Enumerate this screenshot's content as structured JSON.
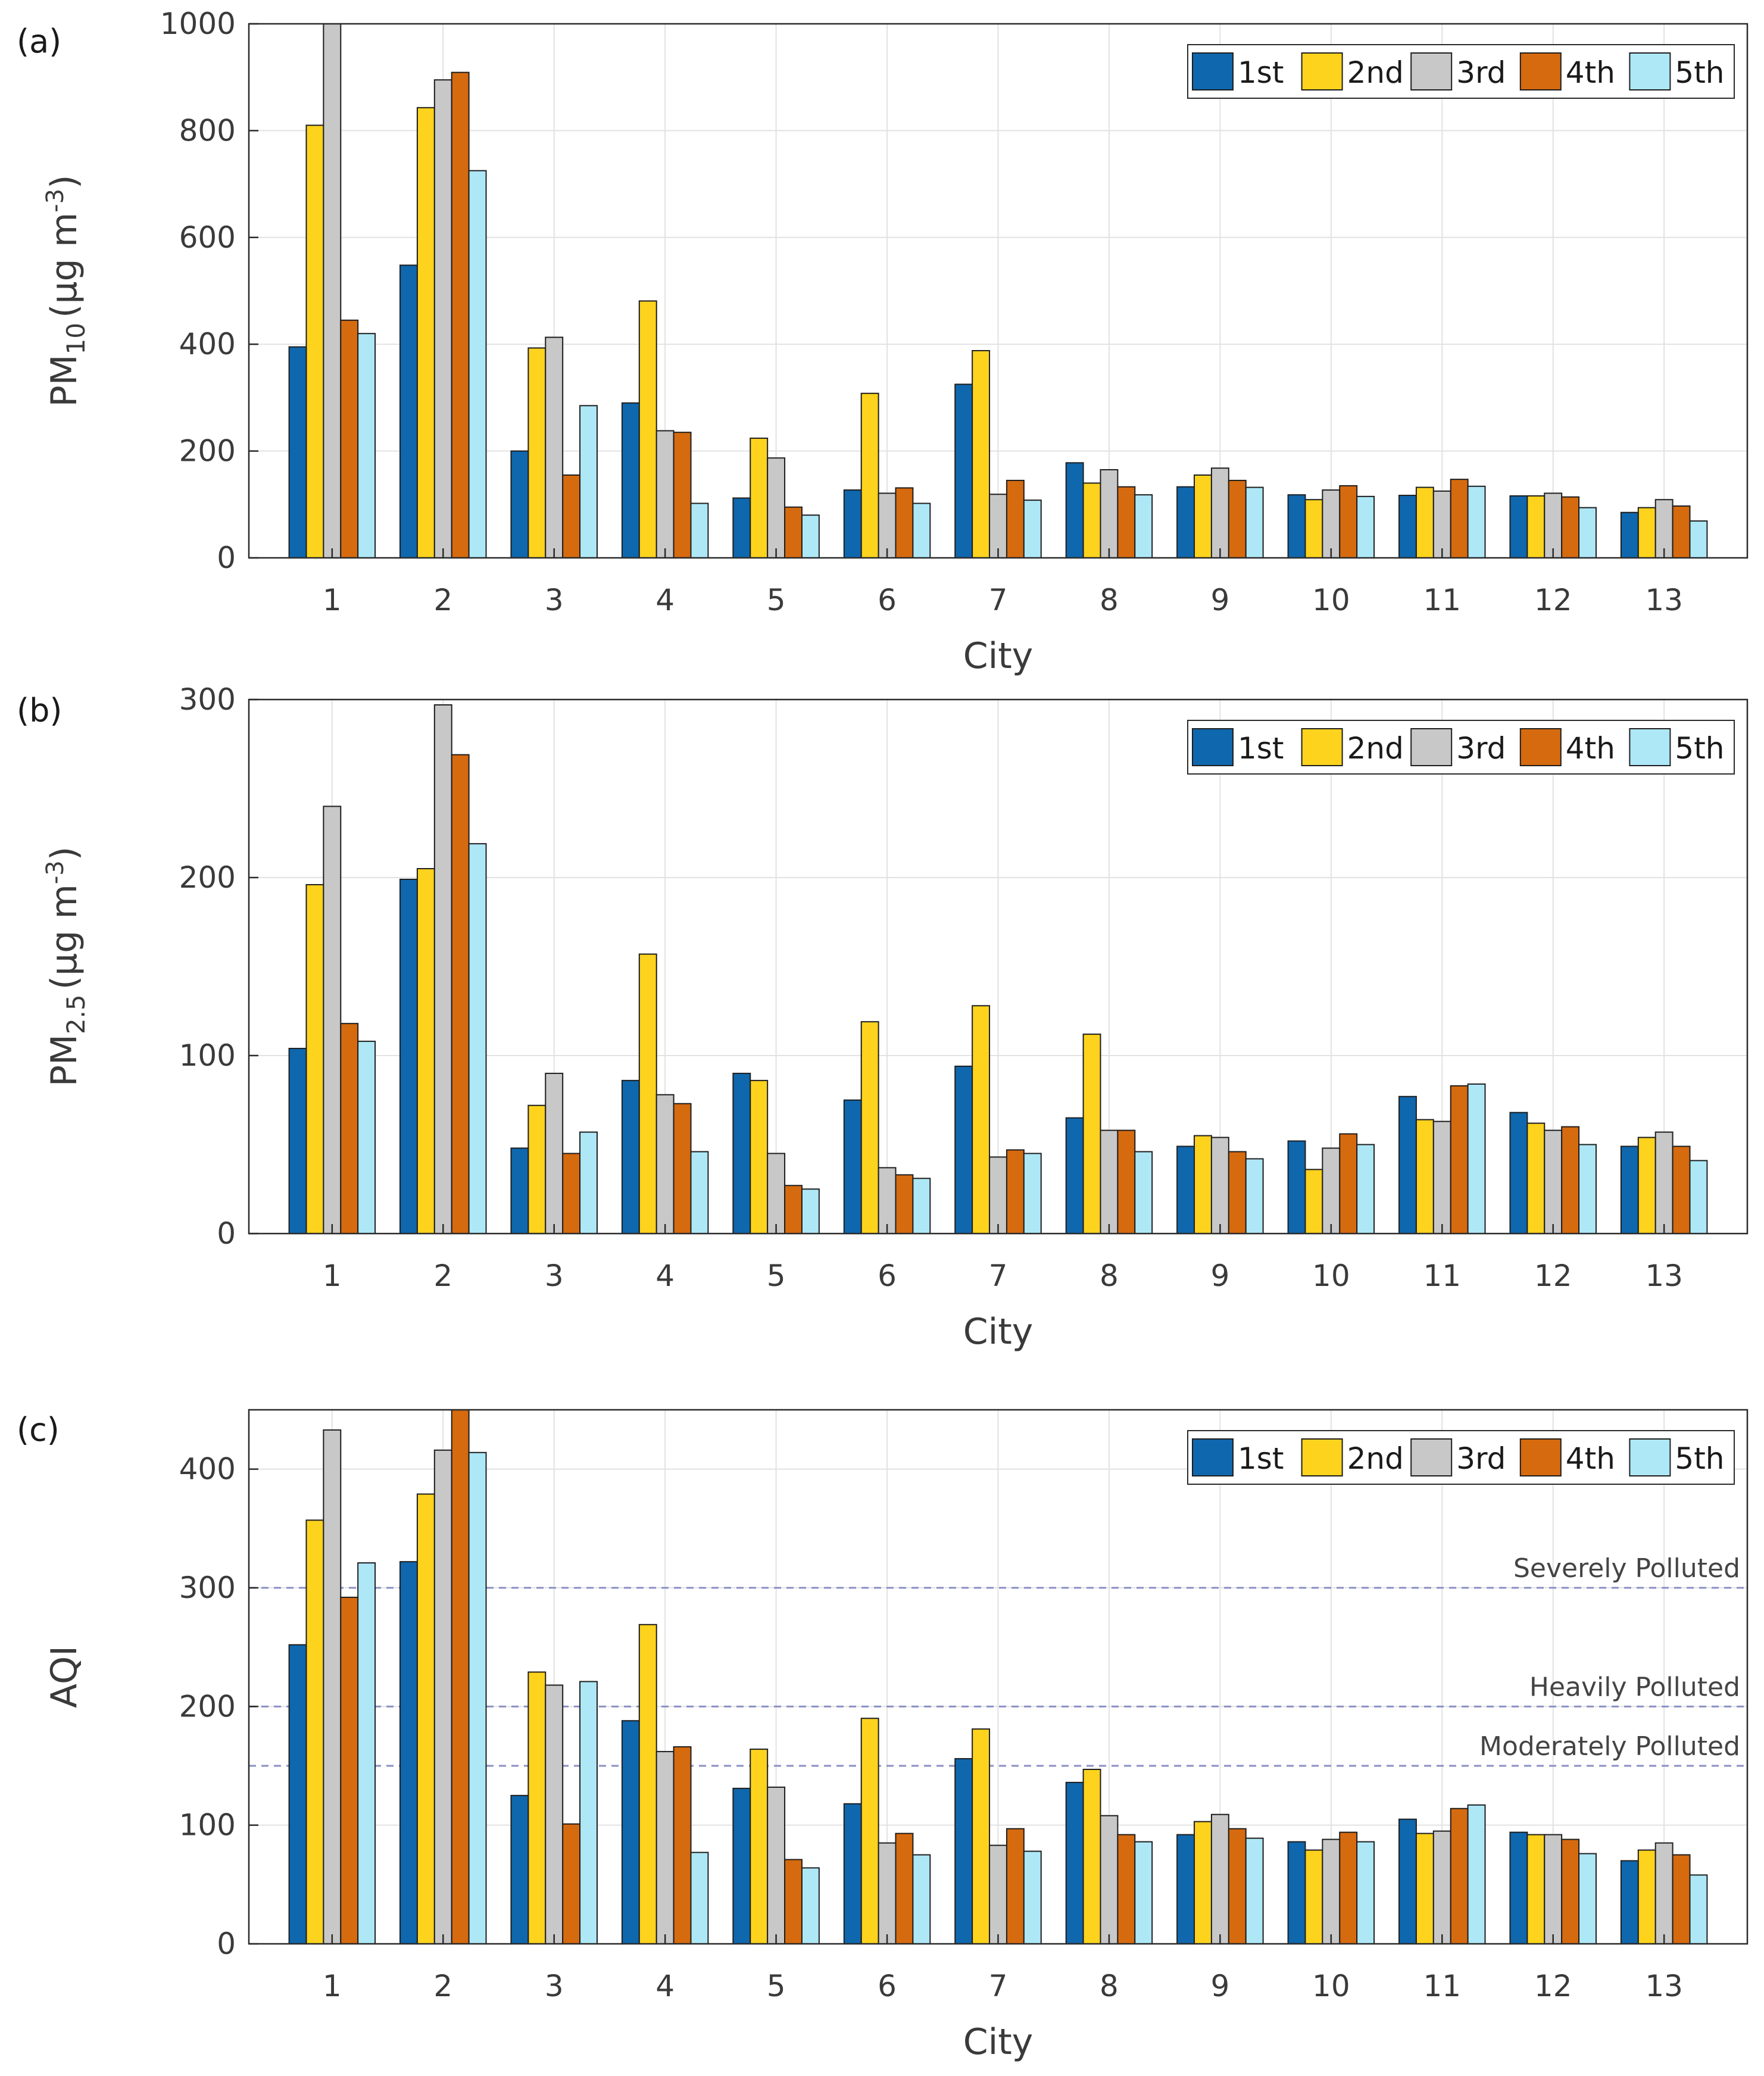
{
  "series_names": [
    "1st",
    "2nd",
    "3rd",
    "4th",
    "5th"
  ],
  "series_colors": [
    "#0f67ad",
    "#fdd31e",
    "#c8c8c8",
    "#d66a0f",
    "#aee8f7"
  ],
  "chart_data": [
    {
      "type": "bar",
      "panel_label": "(a)",
      "ylabel_main": "PM",
      "ylabel_sub": "10",
      "ylabel_unit_open": "(μg m",
      "ylabel_unit_sup": "-3",
      "ylabel_unit_close": ")",
      "xlabel": "City",
      "categories": [
        "1",
        "2",
        "3",
        "4",
        "5",
        "6",
        "7",
        "8",
        "9",
        "10",
        "11",
        "12",
        "13"
      ],
      "ylim": [
        0,
        1000
      ],
      "yticks": [
        0,
        200,
        400,
        600,
        800,
        1000
      ],
      "ytick_labels": [
        "0",
        "200",
        "400",
        "600",
        "800",
        "1000"
      ],
      "grid": true,
      "legend": "top-right",
      "series": [
        {
          "name": "1st",
          "values": [
            395,
            548,
            200,
            290,
            112,
            127,
            325,
            178,
            133,
            118,
            117,
            116,
            85
          ]
        },
        {
          "name": "2nd",
          "values": [
            810,
            843,
            393,
            481,
            224,
            308,
            388,
            140,
            155,
            109,
            132,
            116,
            94
          ]
        },
        {
          "name": "3rd",
          "values": [
            1000,
            895,
            413,
            238,
            187,
            121,
            119,
            165,
            168,
            127,
            125,
            121,
            109
          ]
        },
        {
          "name": "4th",
          "values": [
            445,
            909,
            155,
            235,
            95,
            131,
            145,
            133,
            145,
            135,
            147,
            114,
            97
          ]
        },
        {
          "name": "5th",
          "values": [
            420,
            725,
            285,
            102,
            80,
            102,
            108,
            118,
            132,
            115,
            134,
            94,
            69
          ]
        }
      ]
    },
    {
      "type": "bar",
      "panel_label": "(b)",
      "ylabel_main": "PM",
      "ylabel_sub": "2.5",
      "ylabel_unit_open": "(μg m",
      "ylabel_unit_sup": "-3",
      "ylabel_unit_close": ")",
      "xlabel": "City",
      "categories": [
        "1",
        "2",
        "3",
        "4",
        "5",
        "6",
        "7",
        "8",
        "9",
        "10",
        "11",
        "12",
        "13"
      ],
      "ylim": [
        0,
        300
      ],
      "yticks": [
        0,
        100,
        200,
        300
      ],
      "ytick_labels": [
        "0",
        "100",
        "200",
        "300"
      ],
      "grid": true,
      "legend": "top-right",
      "series": [
        {
          "name": "1st",
          "values": [
            104,
            199,
            48,
            86,
            90,
            75,
            94,
            65,
            49,
            52,
            77,
            68,
            49
          ]
        },
        {
          "name": "2nd",
          "values": [
            196,
            205,
            72,
            157,
            86,
            119,
            128,
            112,
            55,
            36,
            64,
            62,
            54
          ]
        },
        {
          "name": "3rd",
          "values": [
            240,
            297,
            90,
            78,
            45,
            37,
            43,
            58,
            54,
            48,
            63,
            58,
            57
          ]
        },
        {
          "name": "4th",
          "values": [
            118,
            269,
            45,
            73,
            27,
            33,
            47,
            58,
            46,
            56,
            83,
            60,
            49
          ]
        },
        {
          "name": "5th",
          "values": [
            108,
            219,
            57,
            46,
            25,
            31,
            45,
            46,
            42,
            50,
            84,
            50,
            41
          ]
        }
      ]
    },
    {
      "type": "bar",
      "panel_label": "(c)",
      "ylabel_main": "AQI",
      "xlabel": "City",
      "categories": [
        "1",
        "2",
        "3",
        "4",
        "5",
        "6",
        "7",
        "8",
        "9",
        "10",
        "11",
        "12",
        "13"
      ],
      "ylim": [
        0,
        450
      ],
      "yticks": [
        0,
        100,
        200,
        300,
        400
      ],
      "ytick_labels": [
        "0",
        "100",
        "200",
        "300",
        "400"
      ],
      "grid": true,
      "legend": "top-right",
      "thresholds": [
        {
          "value": 300,
          "label": "Severely Polluted"
        },
        {
          "value": 200,
          "label": "Heavily Polluted"
        },
        {
          "value": 150,
          "label": "Moderately Polluted"
        }
      ],
      "series": [
        {
          "name": "1st",
          "values": [
            252,
            322,
            125,
            188,
            131,
            118,
            156,
            136,
            92,
            86,
            105,
            94,
            70
          ]
        },
        {
          "name": "2nd",
          "values": [
            357,
            379,
            229,
            269,
            164,
            190,
            181,
            147,
            103,
            79,
            93,
            92,
            79
          ]
        },
        {
          "name": "3rd",
          "values": [
            433,
            416,
            218,
            162,
            132,
            85,
            83,
            108,
            109,
            88,
            95,
            92,
            85
          ]
        },
        {
          "name": "4th",
          "values": [
            292,
            450,
            101,
            166,
            71,
            93,
            97,
            92,
            97,
            94,
            114,
            88,
            75
          ]
        },
        {
          "name": "5th",
          "values": [
            321,
            414,
            221,
            77,
            64,
            75,
            78,
            86,
            89,
            86,
            117,
            76,
            58
          ]
        }
      ]
    }
  ]
}
